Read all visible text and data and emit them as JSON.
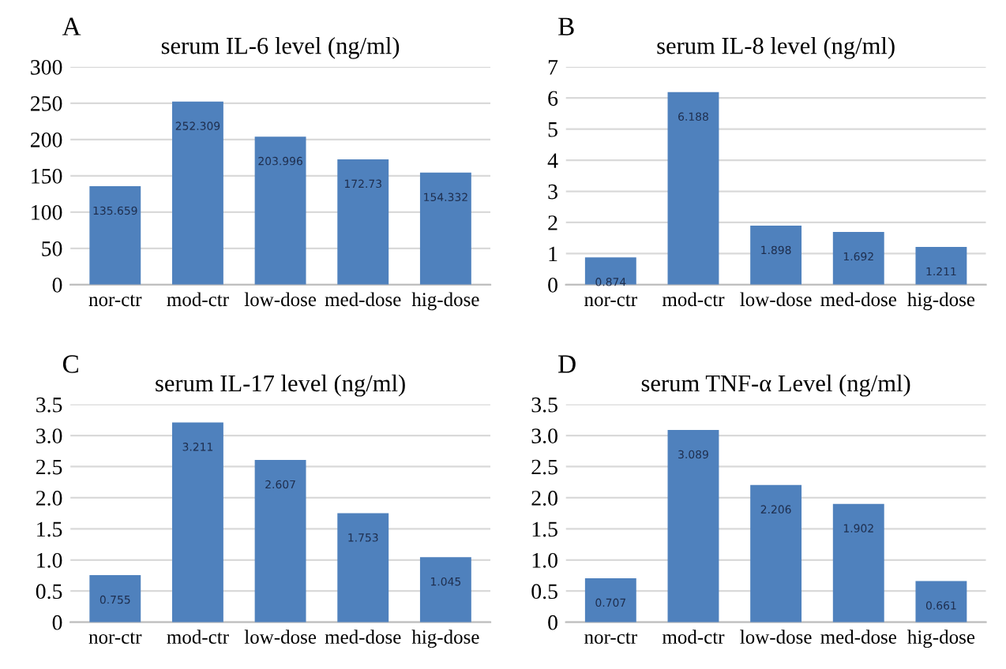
{
  "chart_data": [
    {
      "type": "bar",
      "title": "serum IL-6 level (ng/ml)",
      "annotations": [
        "A"
      ],
      "categories": [
        "nor-ctr",
        "mod-ctr",
        "low-dose",
        "med-dose",
        "hig-dose"
      ],
      "values": [
        135.659,
        252.309,
        203.996,
        172.73,
        154.332
      ],
      "color": "#4f81bd",
      "ylim": [
        0,
        300
      ],
      "yticks": [
        0,
        50,
        100,
        150,
        200,
        250,
        300
      ],
      "grid": "y",
      "data_labels": true
    },
    {
      "type": "bar",
      "title": "serum IL-8 level (ng/ml)",
      "annotations": [
        "B"
      ],
      "categories": [
        "nor-ctr",
        "mod-ctr",
        "low-dose",
        "med-dose",
        "hig-dose"
      ],
      "values": [
        0.874,
        6.188,
        1.898,
        1.692,
        1.211
      ],
      "color": "#4f81bd",
      "ylim": [
        0,
        7
      ],
      "yticks": [
        0,
        1,
        2,
        3,
        4,
        5,
        6,
        7
      ],
      "grid": "y",
      "data_labels": true
    },
    {
      "type": "bar",
      "title": "serum IL-17 level (ng/ml)",
      "annotations": [
        "C"
      ],
      "categories": [
        "nor-ctr",
        "mod-ctr",
        "low-dose",
        "med-dose",
        "hig-dose"
      ],
      "values": [
        0.755,
        3.211,
        2.607,
        1.753,
        1.045
      ],
      "color": "#4f81bd",
      "ylim": [
        0,
        3.5
      ],
      "yticks": [
        0,
        {
          "value": 0.5,
          "label": "0.5"
        },
        {
          "value": 1,
          "label": "1.0"
        },
        {
          "value": 1.5,
          "label": "1.5"
        },
        {
          "value": 2,
          "label": "2.0"
        },
        {
          "value": 2.5,
          "label": "2.5"
        },
        {
          "value": 3,
          "label": "3.0"
        },
        {
          "value": 3.5,
          "label": "3.5"
        }
      ],
      "grid": "y",
      "data_labels": true
    },
    {
      "type": "bar",
      "title": "serum TNF-α Level (ng/ml)",
      "annotations": [
        "D"
      ],
      "categories": [
        "nor-ctr",
        "mod-ctr",
        "low-dose",
        "med-dose",
        "hig-dose"
      ],
      "values": [
        0.707,
        3.089,
        2.206,
        1.902,
        0.661
      ],
      "color": "#4f81bd",
      "ylim": [
        0,
        3.5
      ],
      "yticks": [
        0,
        {
          "value": 0.5,
          "label": "0.5"
        },
        {
          "value": 1,
          "label": "1.0"
        },
        {
          "value": 1.5,
          "label": "1.5"
        },
        {
          "value": 2,
          "label": "2.0"
        },
        {
          "value": 2.5,
          "label": "2.5"
        },
        {
          "value": 3,
          "label": "3.0"
        },
        {
          "value": 3.5,
          "label": "3.5"
        }
      ],
      "grid": "y",
      "data_labels": true
    }
  ]
}
